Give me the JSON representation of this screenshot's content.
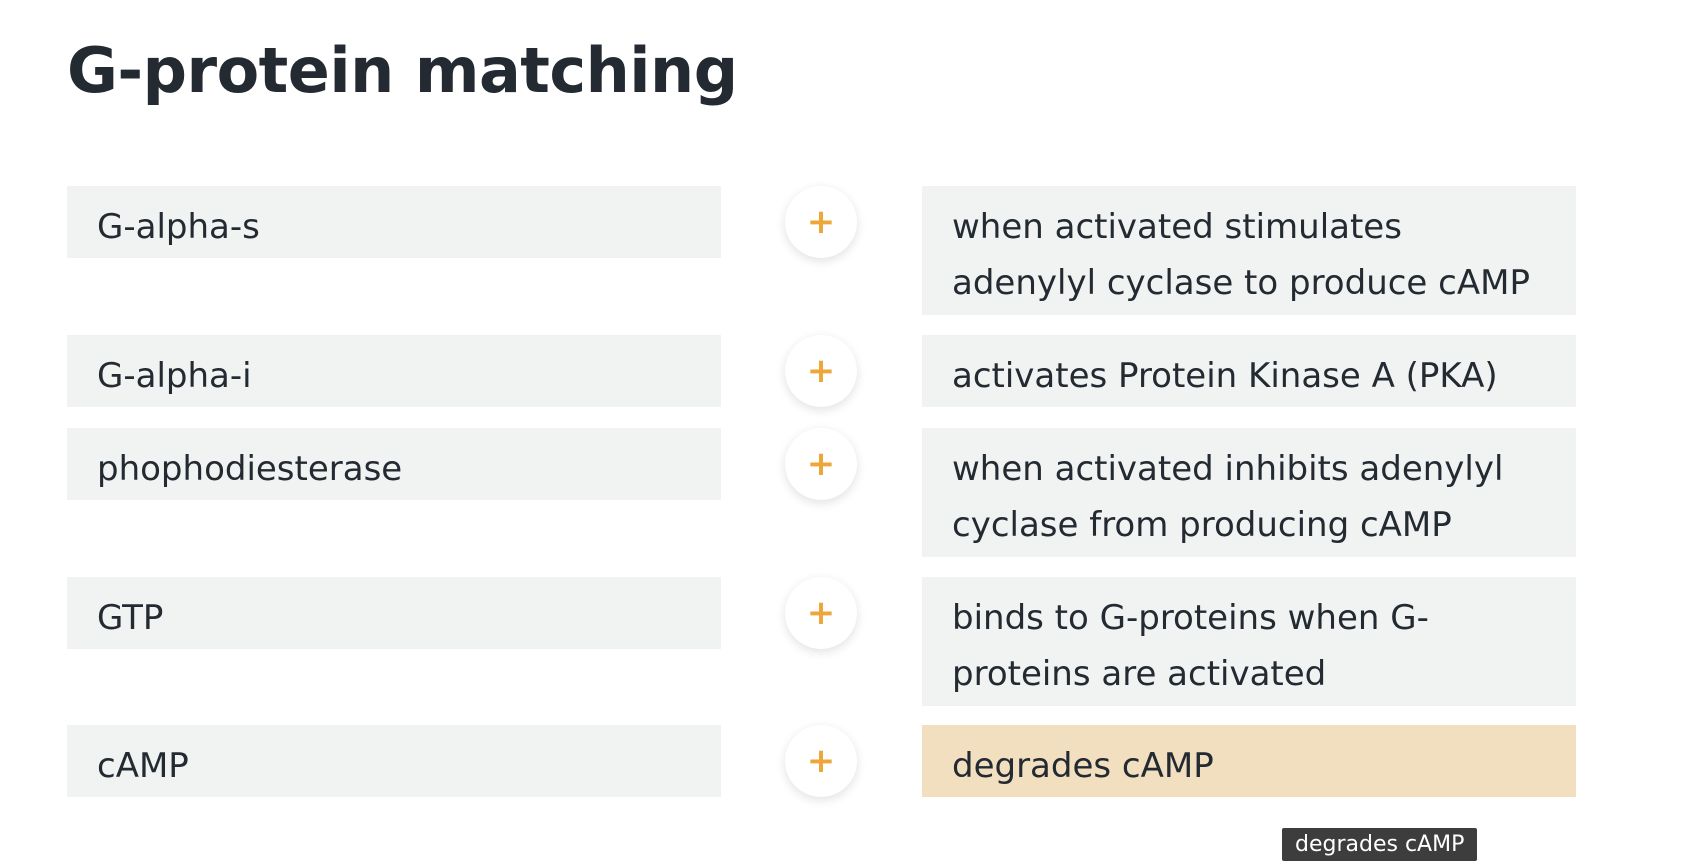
{
  "title": "G-protein matching",
  "terms": [
    "G-alpha-s",
    "G-alpha-i",
    "phophodiesterase",
    "GTP",
    "cAMP"
  ],
  "connectors": [
    "+",
    "+",
    "+",
    "+",
    "+"
  ],
  "definitions": [
    "when activated stimulates adenylyl cyclase to produce cAMP",
    "activates Protein Kinase A (PKA)",
    "when activated inhibits adenylyl cyclase from producing cAMP",
    "binds to G-proteins when G-proteins are activated",
    "degrades cAMP"
  ],
  "tooltip": "degrades cAMP"
}
